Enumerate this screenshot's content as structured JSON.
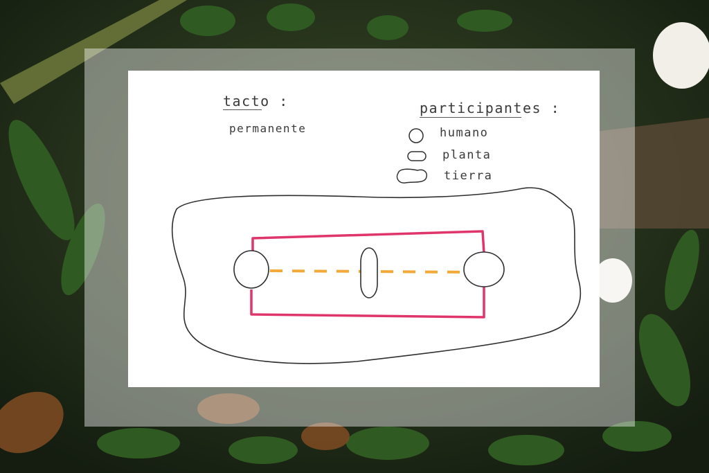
{
  "drawing": {
    "title_label": "tacto :",
    "title_value": "permanente",
    "legend": {
      "heading": "participantes :",
      "items": [
        {
          "symbol": "circle-icon",
          "label": "humano"
        },
        {
          "symbol": "oval-icon",
          "label": "planta"
        },
        {
          "symbol": "blob-icon",
          "label": "tierra"
        }
      ]
    },
    "colors": {
      "pencil": "#3a3a3a",
      "touch_link": "#e0356a",
      "flow_line": "#f2a93a"
    }
  }
}
